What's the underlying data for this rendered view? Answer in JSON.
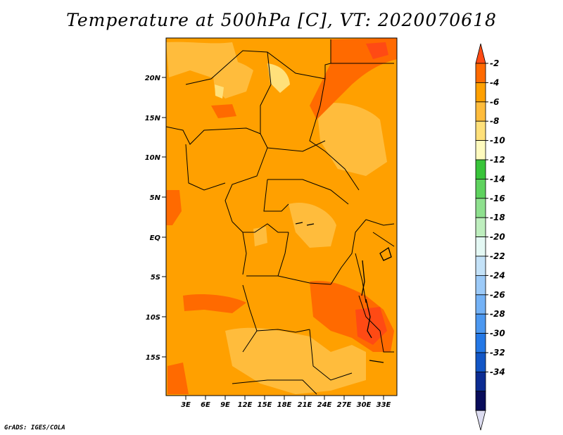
{
  "title": "Temperature at 500hPa [C], VT: 2020070618",
  "credit": "GrADS: IGES/COLA",
  "map": {
    "lat_labels": [
      "20N",
      "15N",
      "10N",
      "5N",
      "EQ",
      "5S",
      "10S",
      "15S"
    ],
    "lon_labels": [
      "3E",
      "6E",
      "9E",
      "12E",
      "15E",
      "18E",
      "21E",
      "24E",
      "27E",
      "30E",
      "33E"
    ]
  },
  "colorbar": {
    "labels": [
      "-2",
      "-4",
      "-6",
      "-8",
      "-10",
      "-12",
      "-14",
      "-16",
      "-18",
      "-20",
      "-22",
      "-24",
      "-26",
      "-28",
      "-30",
      "-32",
      "-34"
    ],
    "colors": [
      "#ff4a14",
      "#ff6a00",
      "#ffa000",
      "#ffbc3c",
      "#ffe07a",
      "#fffabe",
      "#38c43a",
      "#5ed25e",
      "#8ee08e",
      "#beeebe",
      "#e4f8f4",
      "#c4e2f8",
      "#9ccaf8",
      "#74b2f6",
      "#4c98f0",
      "#2478e6",
      "#1256c6",
      "#0c2c92",
      "#080c5a",
      "#dcdcf0"
    ]
  },
  "colors": {
    "dominant": "#ffa000",
    "warm": "#ff6a00",
    "cooler": "#ffbc3c"
  }
}
